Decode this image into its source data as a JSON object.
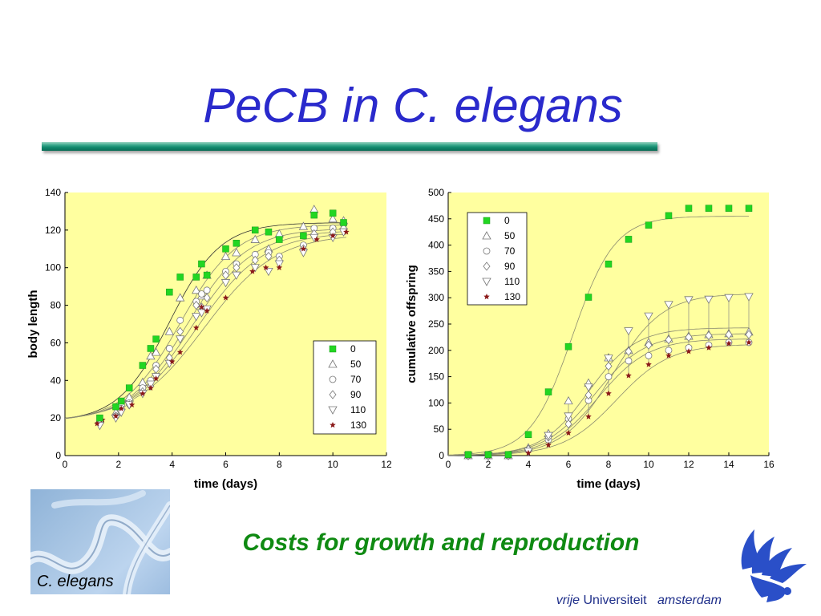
{
  "slide": {
    "title": "PeCB in C. elegans",
    "subtitle": "Costs for growth and reproduction",
    "photo_label": "C. elegans",
    "brand": {
      "word1": "vrije",
      "word2": "Universiteit",
      "word3": "amsterdam"
    }
  },
  "colors": {
    "title": "#2a2acc",
    "subtitle": "#0f8a12",
    "plot_bg": "#ffff9f",
    "control_marker": "#22d622",
    "star_marker": "#8b1a1a"
  },
  "chart_data": [
    {
      "type": "scatter",
      "xlabel": "time (days)",
      "ylabel": "body length",
      "xlim": [
        0,
        12
      ],
      "ylim": [
        0,
        140
      ],
      "xticks": [
        0,
        2,
        4,
        6,
        8,
        10,
        12
      ],
      "yticks": [
        0,
        20,
        40,
        60,
        80,
        100,
        120,
        140
      ],
      "legend": "bottom-right, inside",
      "series": [
        {
          "name": "0",
          "marker": "square-filled-green",
          "x": [
            1.3,
            1.9,
            2.1,
            2.4,
            2.9,
            3.2,
            3.4,
            3.9,
            4.3,
            4.9,
            5.1,
            5.3,
            6.0,
            6.4,
            7.1,
            7.6,
            8.0,
            8.9,
            9.3,
            10.0,
            10.4
          ],
          "y": [
            20,
            26,
            29,
            36,
            48,
            57,
            62,
            87,
            95,
            95,
            102,
            96,
            110,
            113,
            120,
            119,
            115,
            117,
            128,
            129,
            124
          ]
        },
        {
          "name": "50",
          "marker": "triangle-up-open",
          "x": [
            1.3,
            1.9,
            2.1,
            2.4,
            2.9,
            3.2,
            3.4,
            3.9,
            4.3,
            4.9,
            5.1,
            5.3,
            6.0,
            6.4,
            7.1,
            7.6,
            8.0,
            8.9,
            9.3,
            10.0,
            10.4
          ],
          "y": [
            19,
            23,
            28,
            31,
            39,
            53,
            55,
            66,
            84,
            88,
            85,
            96,
            106,
            108,
            115,
            110,
            118,
            122,
            131,
            126,
            125
          ]
        },
        {
          "name": "70",
          "marker": "circle-open",
          "x": [
            1.3,
            1.9,
            2.1,
            2.4,
            2.9,
            3.2,
            3.4,
            3.9,
            4.3,
            4.9,
            5.1,
            5.3,
            6.0,
            6.4,
            7.1,
            7.6,
            8.0,
            8.9,
            9.3,
            10.0,
            10.4
          ],
          "y": [
            18,
            21,
            25,
            28,
            36,
            40,
            48,
            57,
            72,
            82,
            86,
            88,
            98,
            102,
            107,
            108,
            106,
            112,
            121,
            121,
            123
          ]
        },
        {
          "name": "90",
          "marker": "diamond-open",
          "x": [
            1.3,
            1.9,
            2.1,
            2.4,
            2.9,
            3.2,
            3.4,
            3.9,
            4.3,
            4.9,
            5.1,
            5.3,
            6.0,
            6.4,
            7.1,
            7.6,
            8.0,
            8.9,
            9.3,
            10.0,
            10.4
          ],
          "y": [
            17,
            21,
            24,
            27,
            34,
            37,
            46,
            52,
            66,
            80,
            79,
            84,
            96,
            100,
            104,
            106,
            104,
            110,
            118,
            119,
            121
          ]
        },
        {
          "name": "110",
          "marker": "triangle-down-open",
          "x": [
            1.3,
            1.9,
            2.1,
            2.4,
            2.9,
            3.2,
            3.4,
            3.9,
            4.3,
            4.9,
            5.1,
            5.3,
            6.0,
            6.4,
            7.1,
            7.6,
            8.0,
            8.9,
            9.3,
            10.0,
            10.4
          ],
          "y": [
            16,
            20,
            23,
            27,
            33,
            38,
            42,
            49,
            62,
            74,
            76,
            78,
            92,
            96,
            100,
            98,
            102,
            108,
            116,
            116,
            119
          ]
        },
        {
          "name": "130",
          "marker": "star-filled-darkred",
          "x": [
            1.2,
            1.4,
            1.9,
            2.1,
            2.5,
            2.9,
            3.2,
            3.4,
            4.0,
            4.3,
            4.9,
            5.1,
            5.3,
            6.0,
            7.0,
            7.5,
            8.0,
            8.9,
            9.4,
            10.0,
            10.5
          ],
          "y": [
            17,
            19,
            21,
            25,
            27,
            33,
            36,
            41,
            50,
            55,
            68,
            79,
            77,
            84,
            98,
            100,
            100,
            110,
            115,
            117,
            119
          ]
        }
      ],
      "fit_curves": [
        {
          "series": "0",
          "K": 124,
          "r": 1.05,
          "x0": 3.9
        },
        {
          "series": "50",
          "K": 123,
          "r": 0.95,
          "x0": 4.3
        },
        {
          "series": "70",
          "K": 121,
          "r": 0.9,
          "x0": 4.55
        },
        {
          "series": "90",
          "K": 120,
          "r": 0.85,
          "x0": 4.75
        },
        {
          "series": "110",
          "K": 119,
          "r": 0.8,
          "x0": 4.95
        },
        {
          "series": "130",
          "K": 118,
          "r": 0.75,
          "x0": 5.2
        }
      ]
    },
    {
      "type": "scatter",
      "xlabel": "time (days)",
      "ylabel": "cumulative offspring",
      "xlim": [
        0,
        16
      ],
      "ylim": [
        0,
        500
      ],
      "xticks": [
        0,
        2,
        4,
        6,
        8,
        10,
        12,
        14,
        16
      ],
      "yticks": [
        0,
        50,
        100,
        150,
        200,
        250,
        300,
        350,
        400,
        450,
        500
      ],
      "legend": "top-left, inside",
      "series": [
        {
          "name": "0",
          "marker": "square-filled-green",
          "x": [
            1,
            2,
            3,
            4,
            5,
            6,
            7,
            8,
            9,
            10,
            11,
            12,
            13,
            14,
            15
          ],
          "y": [
            2,
            2,
            2,
            40,
            121,
            207,
            301,
            364,
            411,
            438,
            456,
            470,
            470,
            470,
            470
          ]
        },
        {
          "name": "50",
          "marker": "triangle-up-open",
          "x": [
            1,
            2,
            3,
            4,
            5,
            6,
            7,
            8,
            9,
            10,
            11,
            12,
            13,
            14,
            15
          ],
          "y": [
            0,
            0,
            0,
            15,
            42,
            104,
            138,
            186,
            200,
            215,
            222,
            227,
            230,
            232,
            235
          ]
        },
        {
          "name": "70",
          "marker": "circle-open",
          "x": [
            1,
            2,
            3,
            4,
            5,
            6,
            7,
            8,
            9,
            10,
            11,
            12,
            13,
            14,
            15
          ],
          "y": [
            0,
            0,
            0,
            10,
            30,
            70,
            105,
            150,
            180,
            190,
            200,
            205,
            210,
            215,
            215
          ]
        },
        {
          "name": "90",
          "marker": "diamond-open",
          "x": [
            1,
            2,
            3,
            4,
            5,
            6,
            7,
            8,
            9,
            10,
            11,
            12,
            13,
            14,
            15
          ],
          "y": [
            0,
            0,
            0,
            12,
            35,
            60,
            115,
            170,
            198,
            210,
            220,
            225,
            228,
            230,
            230
          ]
        },
        {
          "name": "110",
          "marker": "triangle-down-open",
          "x": [
            1,
            2,
            3,
            4,
            5,
            6,
            7,
            8,
            9,
            10,
            11,
            12,
            13,
            14,
            15
          ],
          "y": [
            0,
            0,
            0,
            8,
            38,
            75,
            130,
            185,
            237,
            265,
            287,
            296,
            297,
            300,
            302
          ]
        },
        {
          "name": "130",
          "marker": "star-filled-darkred",
          "x": [
            1,
            2,
            3,
            4,
            5,
            6,
            7,
            8,
            9,
            10,
            11,
            12,
            13,
            14,
            15
          ],
          "y": [
            0,
            0,
            0,
            5,
            20,
            43,
            74,
            118,
            152,
            173,
            190,
            198,
            205,
            213,
            215
          ]
        }
      ],
      "fit_curves": [
        {
          "series": "0",
          "K": 455,
          "r": 0.95,
          "x0": 6.2
        },
        {
          "series": "50",
          "K": 243,
          "r": 0.85,
          "x0": 7.0
        },
        {
          "series": "70",
          "K": 222,
          "r": 0.8,
          "x0": 7.5
        },
        {
          "series": "90",
          "K": 232,
          "r": 0.8,
          "x0": 7.3
        },
        {
          "series": "110",
          "K": 308,
          "r": 0.8,
          "x0": 8.2
        },
        {
          "series": "130",
          "K": 212,
          "r": 0.75,
          "x0": 8.4
        }
      ]
    }
  ]
}
